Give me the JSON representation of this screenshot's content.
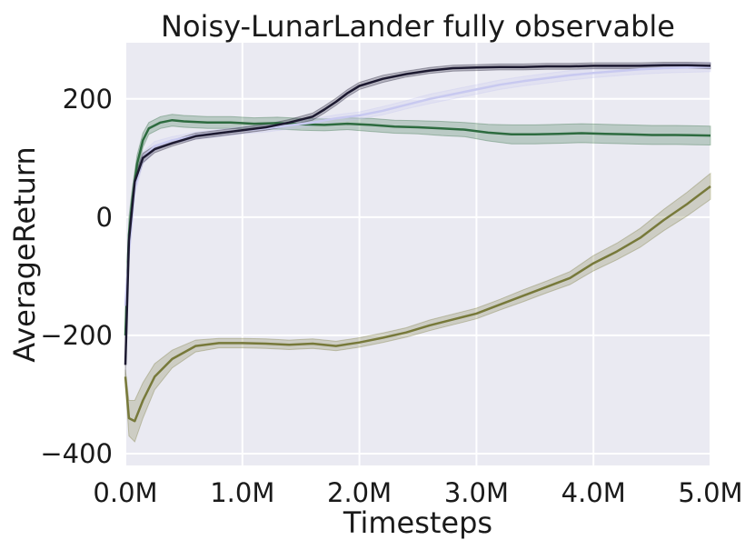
{
  "chart_data": {
    "type": "line",
    "title": "Noisy-LunarLander fully observable",
    "xlabel": "Timesteps",
    "ylabel": "AverageReturn",
    "xlim": [
      0,
      5000000
    ],
    "ylim": [
      -420,
      295
    ],
    "xticks": [
      0,
      1000000,
      2000000,
      3000000,
      4000000,
      5000000
    ],
    "xtick_labels": [
      "0.0M",
      "1.0M",
      "2.0M",
      "3.0M",
      "4.0M",
      "5.0M"
    ],
    "yticks": [
      -400,
      -200,
      0,
      200
    ],
    "ytick_labels": [
      "−400",
      "−200",
      "0",
      "200"
    ],
    "grid": true,
    "legend": null,
    "series": [
      {
        "color": "#77793a",
        "x": [
          0,
          30000,
          80000,
          150000,
          250000,
          400000,
          600000,
          800000,
          1000000,
          1200000,
          1400000,
          1600000,
          1800000,
          2000000,
          2200000,
          2400000,
          2600000,
          2800000,
          3000000,
          3200000,
          3400000,
          3600000,
          3800000,
          4000000,
          4200000,
          4400000,
          4600000,
          4800000,
          5000000
        ],
        "y": [
          -270,
          -340,
          -345,
          -310,
          -270,
          -240,
          -218,
          -213,
          -213,
          -214,
          -216,
          -214,
          -218,
          -212,
          -204,
          -195,
          -183,
          -173,
          -163,
          -148,
          -133,
          -118,
          -103,
          -78,
          -58,
          -35,
          -5,
          22,
          52
        ],
        "band": [
          12,
          30,
          35,
          30,
          22,
          15,
          10,
          8,
          8,
          8,
          8,
          8,
          8,
          8,
          8,
          8,
          9,
          9,
          9,
          9,
          10,
          10,
          11,
          13,
          14,
          16,
          18,
          20,
          22
        ]
      },
      {
        "color": "#2d6b3f",
        "x": [
          0,
          30000,
          60000,
          100000,
          150000,
          200000,
          300000,
          400000,
          500000,
          700000,
          900000,
          1100000,
          1300000,
          1500000,
          1700000,
          1900000,
          2100000,
          2300000,
          2500000,
          2700000,
          2900000,
          3100000,
          3300000,
          3500000,
          3700000,
          3900000,
          4100000,
          4300000,
          4500000,
          4700000,
          5000000
        ],
        "y": [
          -200,
          -30,
          30,
          90,
          130,
          150,
          160,
          164,
          162,
          160,
          160,
          158,
          159,
          157,
          156,
          158,
          156,
          153,
          152,
          150,
          148,
          143,
          140,
          140,
          141,
          142,
          141,
          140,
          139,
          139,
          138
        ],
        "band": [
          40,
          30,
          20,
          15,
          12,
          10,
          10,
          10,
          10,
          10,
          10,
          10,
          10,
          10,
          10,
          10,
          11,
          11,
          11,
          12,
          12,
          14,
          16,
          16,
          16,
          16,
          16,
          16,
          16,
          16,
          16
        ]
      },
      {
        "color": "#c8c9f0",
        "x": [
          0,
          30000,
          80000,
          150000,
          250000,
          400000,
          600000,
          800000,
          1000000,
          1200000,
          1400000,
          1600000,
          1800000,
          2000000,
          2200000,
          2400000,
          2600000,
          2800000,
          3000000,
          3200000,
          3400000,
          3600000,
          3800000,
          4000000,
          4200000,
          4400000,
          4600000,
          4800000,
          5000000
        ],
        "y": [
          -150,
          -60,
          50,
          100,
          120,
          130,
          138,
          142,
          147,
          150,
          155,
          160,
          167,
          172,
          180,
          190,
          200,
          208,
          216,
          224,
          230,
          235,
          240,
          244,
          247,
          250,
          252,
          253,
          254
        ],
        "band": [
          20,
          15,
          12,
          10,
          8,
          6,
          6,
          6,
          6,
          6,
          6,
          6,
          6,
          6,
          7,
          7,
          8,
          8,
          8,
          8,
          8,
          8,
          8,
          8,
          8,
          8,
          8,
          8,
          8
        ]
      },
      {
        "color": "#1c1930",
        "x": [
          0,
          30000,
          80000,
          150000,
          250000,
          400000,
          600000,
          800000,
          1000000,
          1200000,
          1400000,
          1600000,
          1700000,
          1800000,
          1900000,
          2000000,
          2200000,
          2400000,
          2600000,
          2800000,
          3000000,
          3200000,
          3400000,
          3600000,
          3800000,
          4000000,
          4200000,
          4400000,
          4600000,
          4800000,
          5000000
        ],
        "y": [
          -250,
          -40,
          60,
          100,
          115,
          125,
          137,
          142,
          147,
          152,
          160,
          170,
          182,
          195,
          210,
          222,
          234,
          242,
          248,
          252,
          253,
          254,
          254,
          255,
          255,
          256,
          256,
          256,
          257,
          257,
          256
        ],
        "band": [
          20,
          15,
          10,
          8,
          6,
          5,
          5,
          5,
          5,
          5,
          5,
          6,
          6,
          6,
          6,
          6,
          6,
          5,
          5,
          5,
          5,
          5,
          5,
          5,
          5,
          5,
          5,
          5,
          5,
          5,
          5
        ]
      }
    ]
  }
}
